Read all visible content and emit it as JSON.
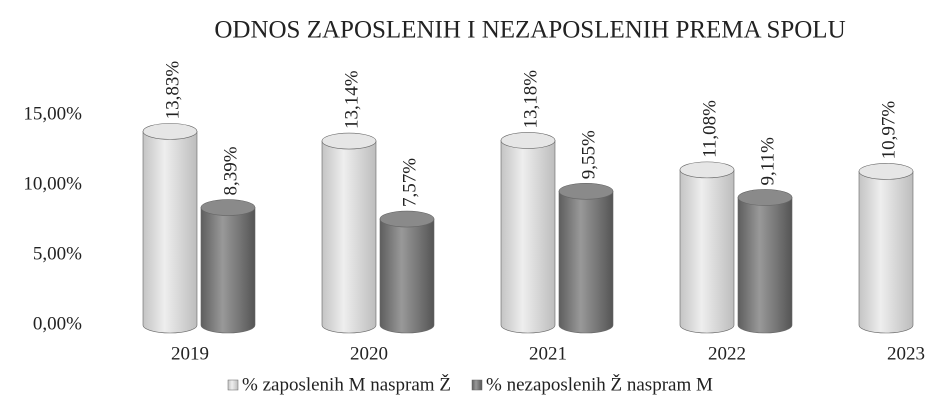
{
  "chart_data": {
    "type": "bar",
    "title": "ODNOS ZAPOSLENIH I NEZAPOSLENIH PREMA SPOLU",
    "categories": [
      "2019",
      "2020",
      "2021",
      "2022",
      "2023"
    ],
    "series": [
      {
        "name": "% zaposlenih M naspram Ž",
        "color": "#d9d9d9",
        "values": [
          13.83,
          13.14,
          13.18,
          11.08,
          10.97
        ],
        "value_labels": [
          "13,83%",
          "13,14%",
          "13,18%",
          "11,08%",
          "10,97%"
        ]
      },
      {
        "name": "% nezaposlenih Ž naspram M",
        "color": "#7a7a7a",
        "values": [
          8.39,
          7.57,
          9.55,
          9.11,
          null
        ],
        "value_labels": [
          "8,39%",
          "7,57%",
          "9,55%",
          "9,11%",
          null
        ]
      }
    ],
    "ylim": [
      0,
      15
    ],
    "yticks": [
      {
        "value": 0,
        "label": "0,00%"
      },
      {
        "value": 5,
        "label": "5,00%"
      },
      {
        "value": 10,
        "label": "10,00%"
      },
      {
        "value": 15,
        "label": "15,00%"
      }
    ],
    "grid": false,
    "legend": "bottom"
  }
}
